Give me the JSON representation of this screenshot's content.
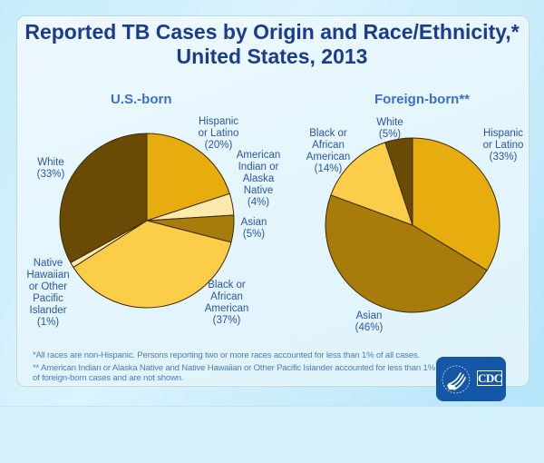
{
  "header": {
    "title_line1": "Reported TB Cases by Origin and Race/Ethnicity,*",
    "title_line2": "United States, 2013"
  },
  "chart_data": [
    {
      "type": "pie",
      "title": "U.S.-born",
      "start": "top",
      "direction": "clockwise",
      "slices": [
        {
          "label": "Hispanic or Latino",
          "value": 20,
          "display": "(20%)",
          "color": "#e7ad0e"
        },
        {
          "label": "American Indian or Alaska Native",
          "value": 4,
          "display": "(4%)",
          "color": "#fde9ad"
        },
        {
          "label": "Asian",
          "value": 5,
          "display": "(5%)",
          "color": "#a87c0a"
        },
        {
          "label": "Black or African American",
          "value": 37,
          "display": "(37%)",
          "color": "#fccd49"
        },
        {
          "label": "Native Hawaiian or Other Pacific Islander",
          "value": 1,
          "display": "(1%)",
          "color": "#fde9ad"
        },
        {
          "label": "White",
          "value": 33,
          "display": "(33%)",
          "color": "#6a4b05"
        }
      ],
      "label_lines": {
        "hispanic": [
          "Hispanic",
          "or Latino",
          "(20%)"
        ],
        "aian": [
          "American",
          "Indian or",
          "Alaska",
          "Native",
          "(4%)"
        ],
        "asian": [
          "Asian",
          "(5%)"
        ],
        "black": [
          "Black or",
          "African",
          "American",
          "(37%)"
        ],
        "nhopi": [
          "Native",
          "Hawaiian",
          "or Other",
          "Pacific",
          "Islander",
          "(1%)"
        ],
        "white": [
          "White",
          "(33%)"
        ]
      }
    },
    {
      "type": "pie",
      "title": "Foreign-born**",
      "start": "top",
      "direction": "clockwise",
      "slices": [
        {
          "label": "Hispanic or Latino",
          "value": 33,
          "display": "(33%)",
          "color": "#e7ad0e"
        },
        {
          "label": "Asian",
          "value": 46,
          "display": "(46%)",
          "color": "#a87c0a"
        },
        {
          "label": "Black or African American",
          "value": 14,
          "display": "(14%)",
          "color": "#fccd49"
        },
        {
          "label": "White",
          "value": 5,
          "display": "(5%)",
          "color": "#6a4b05"
        }
      ],
      "label_lines": {
        "hispanic": [
          "Hispanic",
          "or Latino",
          "(33%)"
        ],
        "asian": [
          "Asian",
          "(46%)"
        ],
        "black": [
          "Black or",
          "African",
          "American",
          "(14%)"
        ],
        "white": [
          "White",
          "(5%)"
        ]
      }
    }
  ],
  "footnotes": {
    "note1": "*All races are non-Hispanic. Persons reporting two or more races accounted for less than 1% of all cases.",
    "note2_line1": "** American Indian or Alaska Native and Native Hawaiian or Other Pacific Islander accounted for less than 1%",
    "note2_line2": "of foreign-born cases and are not shown."
  },
  "logo": {
    "text": "CDC",
    "icon": "hhs-eagle-icon",
    "colors": {
      "background": "#1457a6",
      "foreground": "#ffffff"
    }
  }
}
